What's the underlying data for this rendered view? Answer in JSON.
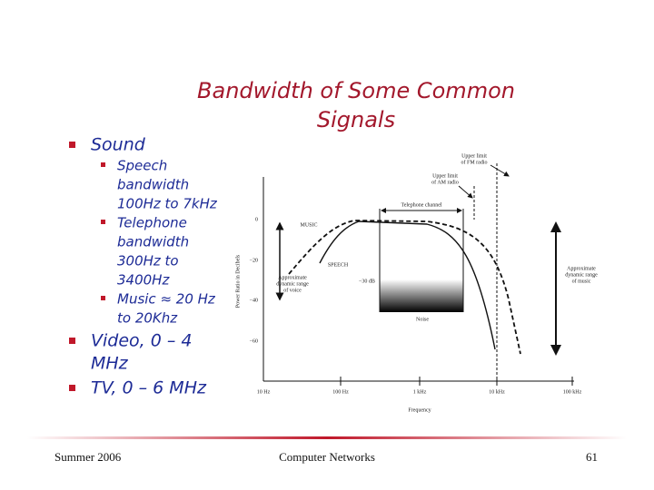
{
  "title": [
    "Bandwidth of Some Common",
    "Signals"
  ],
  "bullets": [
    {
      "text": [
        "Sound"
      ],
      "sub": [
        [
          "Speech",
          "bandwidth",
          "100Hz to 7kHz"
        ],
        [
          "Telephone",
          "bandwidth",
          "300Hz to",
          "3400Hz"
        ],
        [
          "Music ≈ 20 Hz",
          "to 20Khz"
        ]
      ]
    },
    {
      "text": [
        "Video, 0 – 4",
        "MHz"
      ],
      "sub": []
    },
    {
      "text": [
        "TV, 0 – 6 MHz"
      ],
      "sub": []
    }
  ],
  "figure": {
    "fm_limit": [
      "Upper limit",
      "of FM radio"
    ],
    "am_limit": [
      "Upper limit",
      "of AM radio"
    ],
    "telephone": "Telephone channel",
    "music": "MUSIC",
    "speech": "SPEECH",
    "voice_range": [
      "Approximate",
      "dynamic range",
      "of voice"
    ],
    "db30": "−30 dB",
    "noise": "Noise",
    "music_range": [
      "Approximate",
      "dynamic range",
      "of music"
    ],
    "ylabel": "Power Ratio in Decibels",
    "yticks": [
      "0",
      "−20",
      "−40",
      "−60"
    ],
    "xticks": [
      "10 Hz",
      "100 Hz",
      "1 kHz",
      "10 kHz",
      "100 kHz"
    ],
    "xlabel": "Frequency"
  },
  "footer": {
    "left": "Summer 2006",
    "center": "Computer Networks",
    "right": "61"
  }
}
